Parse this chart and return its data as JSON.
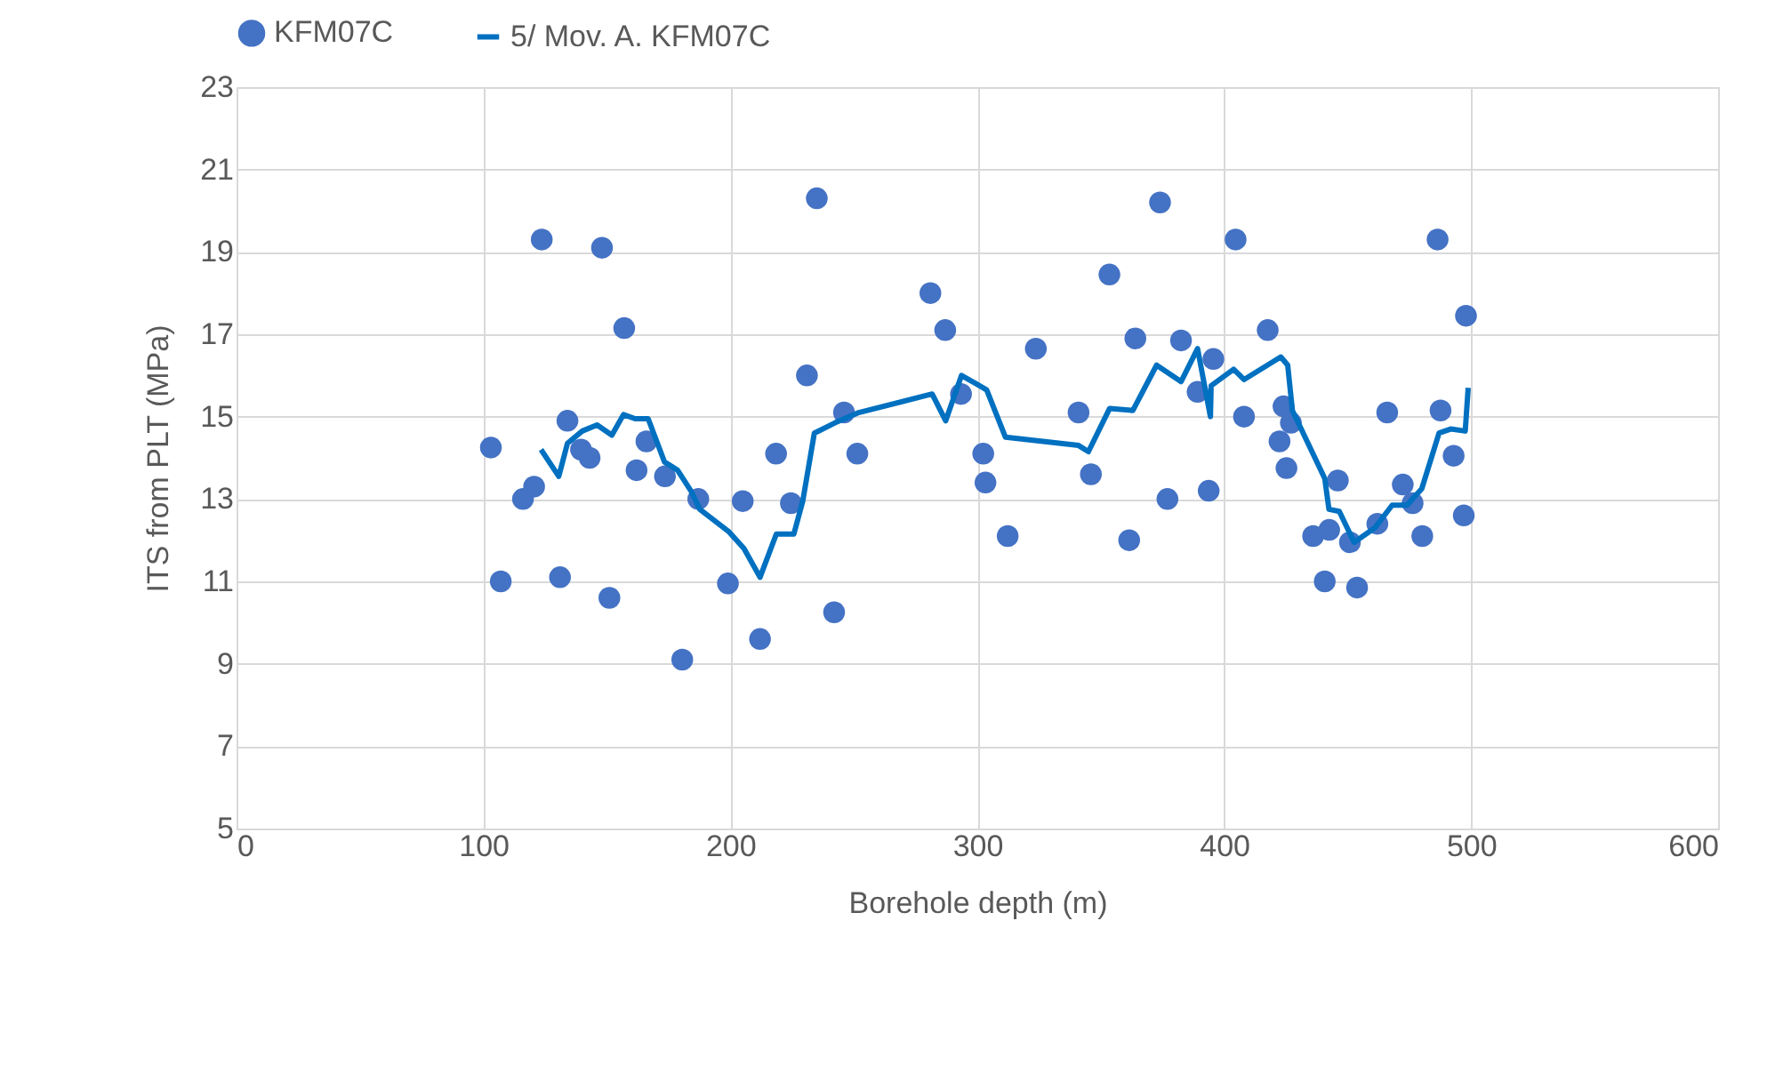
{
  "chart_data": {
    "type": "scatter",
    "xlabel": "Borehole depth (m)",
    "ylabel": "ITS from PLT  (MPa)",
    "xlim": [
      0,
      600
    ],
    "xticks": [
      0,
      100,
      200,
      300,
      400,
      500,
      600
    ],
    "ylim": [
      5,
      23
    ],
    "yticks": [
      5,
      7,
      9,
      11,
      13,
      15,
      17,
      19,
      21,
      23
    ],
    "grid": true,
    "legend": "top",
    "series": [
      {
        "name": "KFM07C",
        "marker": "circle",
        "color": "#4472c4",
        "x": [
          103,
          107,
          116,
          120.5,
          123.6,
          131,
          134,
          139.5,
          143,
          148,
          151,
          157,
          162,
          166,
          173.5,
          180.5,
          187,
          199,
          205,
          212,
          218.5,
          224.5,
          231,
          235,
          242,
          246,
          251.4,
          281,
          287,
          293.4,
          302.4,
          303.3,
          312.3,
          323.7,
          341,
          346,
          353.5,
          361.5,
          364,
          374,
          377,
          382.5,
          389.2,
          393.7,
          395.6,
          404.6,
          408,
          417.6,
          422.4,
          424,
          425.2,
          427,
          436,
          440.7,
          442.5,
          446,
          450.9,
          453.8,
          462,
          466,
          472.3,
          476.3,
          480.2,
          486.4,
          487.6,
          492.9,
          497,
          497.9
        ],
        "values": [
          14.25,
          11.0,
          13.0,
          13.3,
          19.3,
          11.1,
          14.9,
          14.2,
          14.0,
          19.1,
          10.6,
          17.15,
          13.7,
          14.4,
          13.55,
          9.1,
          13.0,
          10.95,
          12.95,
          9.6,
          14.1,
          12.9,
          16.0,
          20.3,
          10.25,
          15.1,
          14.1,
          18.0,
          17.1,
          15.55,
          14.1,
          13.4,
          12.1,
          16.65,
          15.1,
          13.6,
          18.45,
          12.0,
          16.9,
          20.2,
          13.0,
          16.85,
          15.6,
          13.2,
          16.4,
          19.3,
          15.0,
          17.1,
          14.4,
          15.25,
          13.75,
          14.85,
          12.1,
          11.0,
          12.25,
          13.45,
          11.95,
          10.85,
          12.4,
          15.1,
          13.35,
          12.9,
          12.1,
          19.3,
          15.15,
          14.05,
          12.6,
          17.45
        ]
      },
      {
        "name": "5/ Mov. A. KFM07C",
        "type": "line",
        "marker": "none",
        "color": "#0070c0",
        "line_style": "solid",
        "x": [
          123.3,
          130.5,
          134,
          140,
          146,
          152,
          156.7,
          161.4,
          166.7,
          173.3,
          178.6,
          184,
          187.6,
          199.5,
          205.5,
          212,
          218.6,
          225.7,
          229.3,
          234,
          242.4,
          252,
          281.7,
          287.2,
          293.6,
          299.5,
          303.8,
          311.4,
          341,
          345,
          353.6,
          363,
          372.6,
          382.5,
          389.2,
          394.4,
          394.7,
          403.8,
          408,
          422.9,
          425.7,
          427.6,
          440.7,
          442.4,
          446.6,
          452.6,
          461,
          468,
          474,
          480,
          487,
          491.7,
          497.6,
          498.8
        ],
        "values": [
          14.2,
          13.55,
          14.35,
          14.65,
          14.8,
          14.55,
          15.05,
          14.95,
          14.95,
          13.9,
          13.7,
          13.2,
          12.75,
          12.2,
          11.8,
          11.1,
          12.15,
          12.15,
          12.95,
          14.6,
          14.85,
          15.1,
          15.55,
          14.9,
          16.0,
          15.8,
          15.65,
          14.5,
          14.3,
          14.15,
          15.2,
          15.15,
          16.25,
          15.85,
          16.65,
          15.0,
          15.75,
          16.15,
          15.9,
          16.45,
          16.25,
          15.15,
          13.5,
          12.75,
          12.7,
          11.95,
          12.3,
          12.85,
          12.85,
          13.25,
          14.6,
          14.7,
          14.65,
          15.7
        ]
      }
    ]
  }
}
